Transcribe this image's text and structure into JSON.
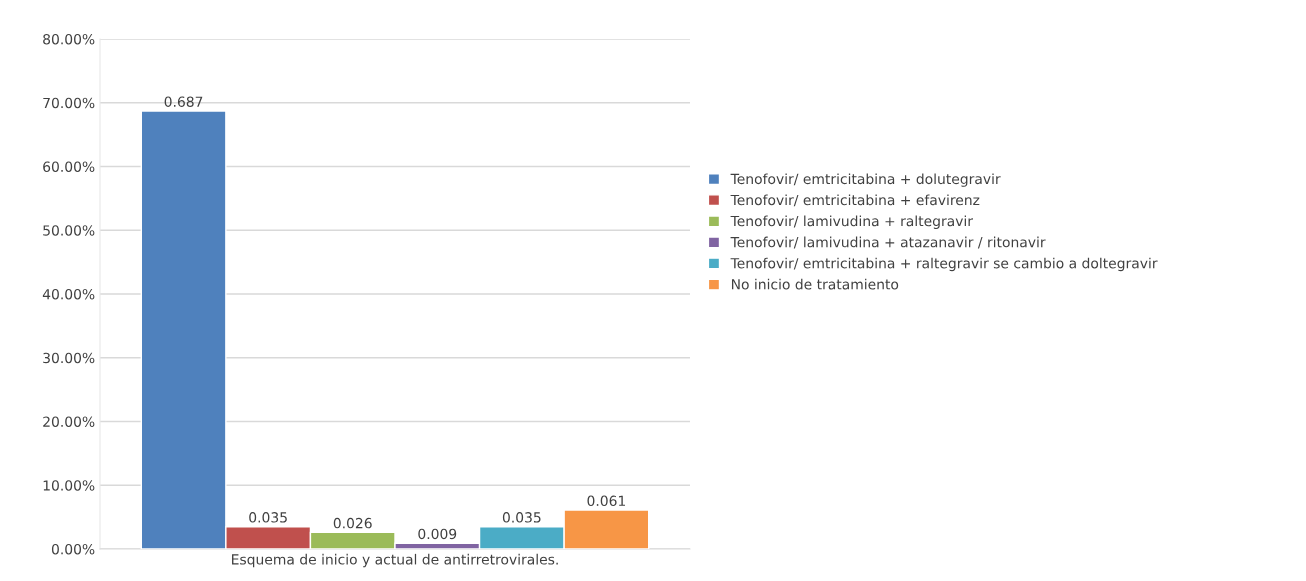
{
  "chart_data": {
    "type": "bar",
    "categories": [
      "Esquema de inicio y actual de antirretrovirales."
    ],
    "series": [
      {
        "name": "Tenofovir/ emtricitabina + dolutegravir",
        "color": "#4f81bd",
        "values": [
          0.687
        ]
      },
      {
        "name": "Tenofovir/ emtricitabina + efavirenz",
        "color": "#c0504d",
        "values": [
          0.035
        ]
      },
      {
        "name": "Tenofovir/ lamivudina + raltegravir",
        "color": "#9bbb59",
        "values": [
          0.026
        ]
      },
      {
        "name": "Tenofovir/ lamivudina + atazanavir / ritonavir",
        "color": "#8064a2",
        "values": [
          0.009
        ]
      },
      {
        "name": "Tenofovir/ emtricitabina + raltegravir se cambio a doltegravir",
        "color": "#4bacc6",
        "values": [
          0.035
        ]
      },
      {
        "name": "No inicio de tratamiento",
        "color": "#f79646",
        "values": [
          0.061
        ]
      }
    ],
    "ylim": [
      0,
      0.8
    ],
    "yticks": [
      {
        "value": 0,
        "label": "0.00%"
      },
      {
        "value": 0.1,
        "label": "10.00%"
      },
      {
        "value": 0.2,
        "label": "20.00%"
      },
      {
        "value": 0.3,
        "label": "30.00%"
      },
      {
        "value": 0.4,
        "label": "40.00%"
      },
      {
        "value": 0.5,
        "label": "50.00%"
      },
      {
        "value": 0.6,
        "label": "60.00%"
      },
      {
        "value": 0.7,
        "label": "70.00%"
      },
      {
        "value": 0.8,
        "label": "80.00%"
      }
    ],
    "grid": "y",
    "legend": "right",
    "data_labels": true
  }
}
